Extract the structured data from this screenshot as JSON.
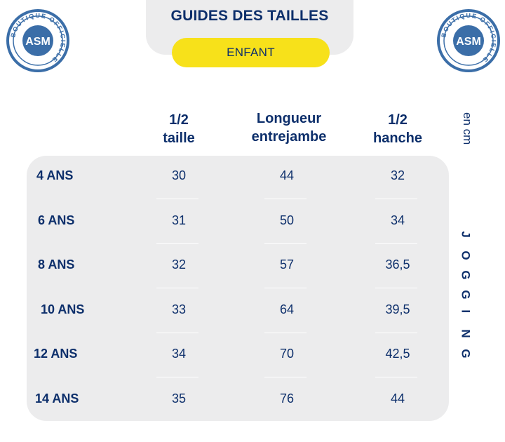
{
  "header": {
    "title": "GUIDES DES TAILLES",
    "subtitle": "ENFANT"
  },
  "logo": {
    "ring_text": "BOUTIQUE OFFICIELLE",
    "monogram": "ASM",
    "color": "#3b6ea8"
  },
  "unit": "en cm",
  "side_label": "JOGGING",
  "columns": [
    {
      "line1": "1/2",
      "line2": "taille"
    },
    {
      "line1": "Longueur",
      "line2": "entrejambe"
    },
    {
      "line1": "1/2",
      "line2": "hanche"
    }
  ],
  "rows": [
    {
      "label": "4 ANS",
      "values": [
        "30",
        "44",
        "32"
      ]
    },
    {
      "label": "6 ANS",
      "values": [
        "31",
        "50",
        "34"
      ]
    },
    {
      "label": "8 ANS",
      "values": [
        "32",
        "57",
        "36,5"
      ]
    },
    {
      "label": "10 ANS",
      "values": [
        "33",
        "64",
        "39,5"
      ]
    },
    {
      "label": "12 ANS",
      "values": [
        "34",
        "70",
        "42,5"
      ]
    },
    {
      "label": "14 ANS",
      "values": [
        "35",
        "76",
        "44"
      ]
    }
  ],
  "colors": {
    "navy": "#0d2f6b",
    "yellow": "#f7e11a",
    "panel": "#ececed"
  }
}
